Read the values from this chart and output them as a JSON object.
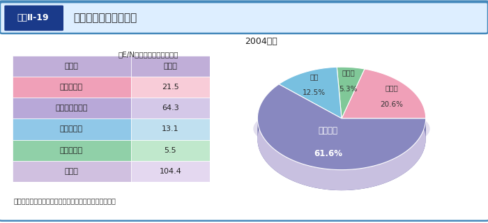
{
  "title_box": "図表Ⅱ-19",
  "title_main": "食糧援助の地域別配分",
  "subtitle": "2004年度",
  "note_unit": "（E/Nベース、単位：億円）",
  "note_bottom": "注：四捨五入の関係上、合計が一致しないことがある。",
  "table_headers": [
    "地　域",
    "金　額"
  ],
  "table_rows": [
    {
      "label": "ア　ジ　ア",
      "value": "21.5",
      "row_color": "#f0a0b8",
      "val_color": "#f8ccd8"
    },
    {
      "label": "ア　フ　リ　カ",
      "value": "64.3",
      "row_color": "#b8a8d8",
      "val_color": "#d4c8e8"
    },
    {
      "label": "中　　　東",
      "value": "13.1",
      "row_color": "#90c8e8",
      "val_color": "#c0e0f0"
    },
    {
      "label": "中　南　米",
      "value": "5.5",
      "row_color": "#90d0a8",
      "val_color": "#c0e8cc"
    },
    {
      "label": "合　計",
      "value": "104.4",
      "row_color": "#d0c0e0",
      "val_color": "#e4d8f0"
    }
  ],
  "header_color": "#c0aed8",
  "pie_labels": [
    "アジア\n20.6%",
    "中南米\n5.3%",
    "中東\n12.5%",
    "アフリカ\n61.6%"
  ],
  "pie_label_short": [
    "アジア",
    "20.6%",
    "中南米",
    "5.3%",
    "中東",
    "12.5%",
    "アフリカ",
    "61.6%"
  ],
  "pie_values": [
    20.6,
    5.3,
    12.5,
    61.6
  ],
  "pie_colors": [
    "#f0a0b8",
    "#80c898",
    "#78c0e0",
    "#8888c0"
  ],
  "pie_side_colors": [
    "#d07888",
    "#50a870",
    "#4898b8",
    "#6060a0"
  ],
  "pie_shadow_color": "#c8c0e0",
  "border_color": "#4488bb",
  "title_box_color": "#1a3a8a",
  "title_box_bg": "#1a3a8a",
  "background_color": "#ffffff"
}
